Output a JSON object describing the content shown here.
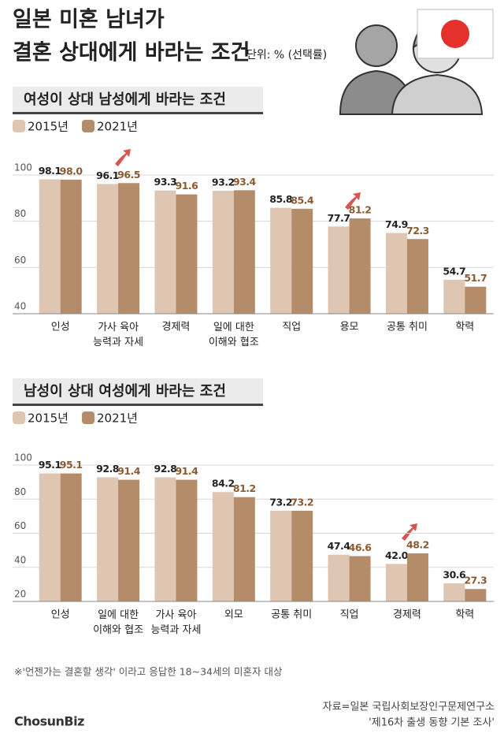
{
  "header": {
    "title": [
      "일본 미혼 남녀가",
      "결혼 상대에게 바라는 조건"
    ],
    "unit": "단위: % (선택률)"
  },
  "chart_data": [
    {
      "type": "bar",
      "title": "여성이 상대 남성에게 바라는 조건",
      "categories": [
        "인성",
        "가사 육아\n능력과 자세",
        "경제력",
        "일에 대한\n이해와 협조",
        "직업",
        "용모",
        "공통 취미",
        "학력"
      ],
      "series": [
        {
          "name": "2015년",
          "color": "#dfc6b3",
          "values": [
            98.1,
            96.1,
            93.3,
            93.2,
            85.8,
            77.7,
            74.9,
            54.7
          ],
          "value_labels": [
            "98.1",
            "96.1",
            "93.3",
            "93.2",
            "85.8",
            "77.7",
            "74.9",
            "54.7"
          ]
        },
        {
          "name": "2021년",
          "color": "#b48c69",
          "values": [
            98.0,
            96.5,
            91.6,
            93.4,
            85.4,
            81.2,
            72.3,
            51.7
          ],
          "value_labels": [
            "98.0",
            "96.5",
            "91.6",
            "93.4",
            "85.4",
            "81.2",
            "72.3",
            "51.7"
          ]
        }
      ],
      "ylim": [
        40,
        100
      ],
      "yticks": [
        40,
        60,
        80,
        100
      ],
      "grid": true
    },
    {
      "type": "bar",
      "title": "남성이 상대 여성에게 바라는 조건",
      "categories": [
        "인성",
        "일에 대한\n이해와 협조",
        "가사 육아\n능력과 자세",
        "외모",
        "공통 취미",
        "직업",
        "경제력",
        "학력"
      ],
      "series": [
        {
          "name": "2015년",
          "color": "#dfc6b3",
          "values": [
            95.1,
            92.8,
            92.8,
            84.2,
            73.2,
            47.4,
            42.0,
            30.6
          ],
          "value_labels": [
            "95.1",
            "92.8",
            "92.8",
            "84.2",
            "73.2",
            "47.4",
            "42.0",
            "30.6"
          ]
        },
        {
          "name": "2021년",
          "color": "#b48c69",
          "values": [
            95.1,
            91.4,
            91.4,
            81.2,
            73.2,
            46.6,
            48.2,
            27.3
          ],
          "value_labels": [
            "95.1",
            "91.4",
            "91.4",
            "81.2",
            "73.2",
            "46.6",
            "48.2",
            "27.3"
          ]
        }
      ],
      "ylim": [
        20,
        100
      ],
      "yticks": [
        20,
        40,
        60,
        80,
        100
      ],
      "grid": true
    }
  ],
  "footer": {
    "note": "※'언젠가는 결혼할 생각' 이라고 응답한 18~34세의 미혼자 대상",
    "source": [
      "자료=일본 국립사회보장인구문제연구소",
      "'제16차 출생 동향 기본 조사'"
    ],
    "logo": "ChosunBiz"
  }
}
